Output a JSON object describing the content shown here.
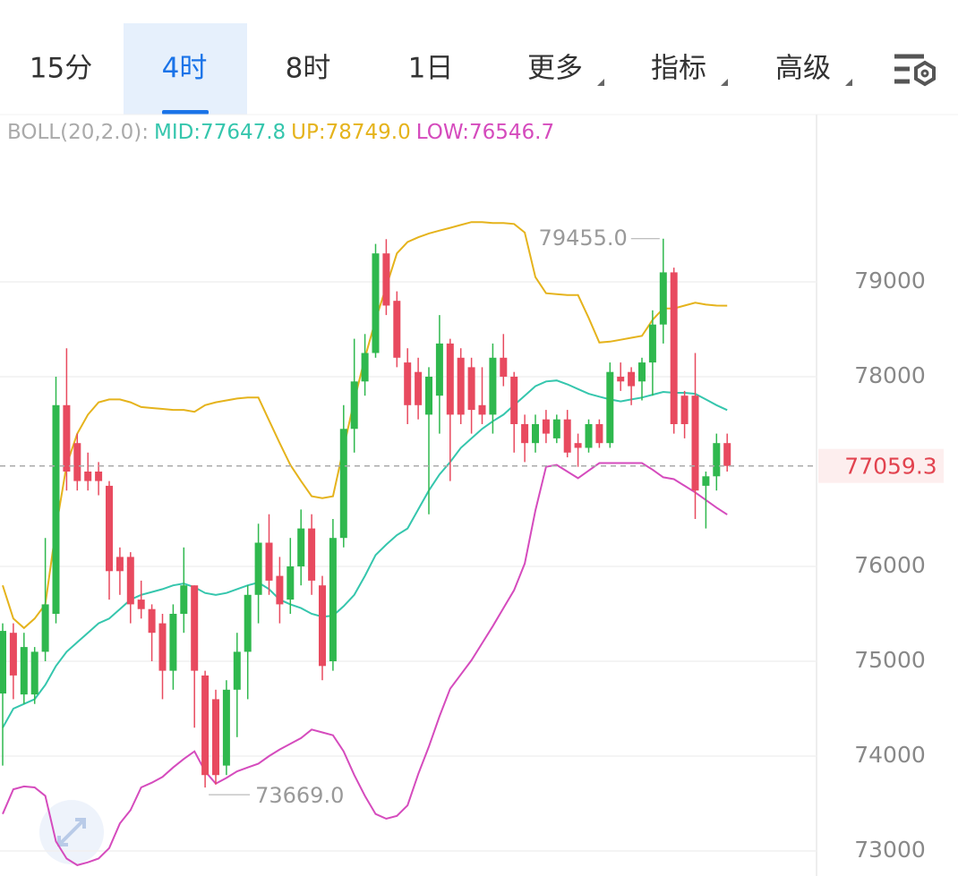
{
  "tabs": [
    "15分",
    "4时",
    "8时",
    "1日",
    "更多",
    "指标",
    "高级"
  ],
  "selected_tab": 1,
  "chart_data": {
    "type": "candlestick",
    "indicator": "BOLL(20,2.0):",
    "up_color": "#2fb84e",
    "down_color": "#e84a5f",
    "ylim": [
      72736,
      80764
    ],
    "yticks": [
      73000,
      74000,
      75000,
      76000,
      78000,
      79000
    ],
    "grid": true,
    "open": [
      74660,
      75300,
      74650,
      74650,
      75100,
      75500,
      77700,
      77300,
      77000,
      77000,
      76850,
      76100,
      76100,
      75650,
      75550,
      75400,
      74900,
      75500,
      75800,
      74850,
      74600,
      73900,
      74700,
      75100,
      75700,
      76250,
      75900,
      75650,
      76000,
      76400,
      75800,
      75000,
      76300,
      77450,
      77950,
      78250,
      79300,
      78800,
      78150,
      78050,
      77600,
      77800,
      78350,
      78200,
      78100,
      77700,
      77600,
      78200,
      78000,
      77500,
      77300,
      77550,
      77350,
      77550,
      77300,
      77250,
      77500,
      77300,
      78000,
      78050,
      77950,
      78150,
      78550,
      79100,
      77800,
      77800,
      76850,
      76950,
      77300
    ],
    "high": [
      75400,
      75400,
      75300,
      75150,
      76300,
      78000,
      78300,
      77400,
      77200,
      77100,
      76900,
      76200,
      76150,
      75850,
      75600,
      75500,
      75600,
      76200,
      75800,
      74900,
      74700,
      74800,
      75300,
      75800,
      76450,
      76550,
      76100,
      76300,
      76600,
      76550,
      75900,
      76500,
      77700,
      78400,
      78450,
      79400,
      79450,
      78900,
      78300,
      78200,
      78100,
      78650,
      78400,
      78300,
      78200,
      78100,
      78350,
      78450,
      78050,
      77600,
      77600,
      77650,
      77600,
      77650,
      77400,
      77550,
      77550,
      78150,
      78150,
      78100,
      78200,
      78700,
      79455,
      79150,
      77850,
      78250,
      77000,
      77400,
      77400
    ],
    "low": [
      73900,
      74600,
      74550,
      74550,
      75000,
      75400,
      76800,
      76800,
      76800,
      76750,
      75650,
      75700,
      75400,
      75450,
      75000,
      74600,
      74700,
      75300,
      74300,
      73669,
      73700,
      73800,
      74200,
      74600,
      75400,
      75700,
      75400,
      75500,
      75800,
      75700,
      74800,
      74900,
      76200,
      77200,
      77800,
      78200,
      78650,
      78100,
      77500,
      77550,
      76550,
      77400,
      76900,
      77500,
      77400,
      77500,
      77400,
      77900,
      77200,
      77100,
      77200,
      77300,
      77300,
      77150,
      77050,
      77200,
      77250,
      77250,
      77850,
      77700,
      77750,
      77800,
      78350,
      77400,
      77350,
      76500,
      76400,
      76800,
      77000
    ],
    "close": [
      75320,
      74850,
      75150,
      75100,
      75600,
      77700,
      77000,
      76900,
      76900,
      76900,
      75950,
      75950,
      75600,
      75550,
      75300,
      74900,
      75500,
      75800,
      74900,
      73800,
      73800,
      74700,
      75100,
      75700,
      76250,
      75850,
      75600,
      76000,
      76400,
      75850,
      74950,
      76300,
      77450,
      77950,
      78250,
      79300,
      78750,
      78200,
      77700,
      77700,
      78000,
      78350,
      77600,
      77600,
      77650,
      77600,
      78200,
      78000,
      77500,
      77300,
      77500,
      77400,
      77550,
      77200,
      77250,
      77500,
      77300,
      78050,
      77950,
      77900,
      78150,
      78550,
      79100,
      77500,
      77500,
      76800,
      76950,
      77300,
      77059.3
    ],
    "bands": [
      {
        "legend": "MID:77647.8",
        "color": "#35c6ad",
        "values": [
          74300,
          74500,
          74550,
          74600,
          74750,
          74950,
          75100,
          75200,
          75300,
          75400,
          75450,
          75550,
          75650,
          75700,
          75730,
          75760,
          75800,
          75820,
          75780,
          75720,
          75700,
          75720,
          75760,
          75800,
          75830,
          75760,
          75650,
          75600,
          75560,
          75500,
          75470,
          75480,
          75580,
          75700,
          75900,
          76120,
          76230,
          76330,
          76400,
          76600,
          76800,
          76970,
          77100,
          77250,
          77350,
          77450,
          77530,
          77600,
          77700,
          77800,
          77900,
          77950,
          77960,
          77920,
          77870,
          77820,
          77790,
          77760,
          77740,
          77760,
          77780,
          77810,
          77840,
          77830,
          77830,
          77820,
          77760,
          77700,
          77647.8
        ]
      },
      {
        "legend": "UP:78749.0",
        "color": "#e5b31c",
        "values": [
          75800,
          75450,
          75350,
          75450,
          75600,
          76400,
          77070,
          77400,
          77600,
          77730,
          77760,
          77760,
          77730,
          77680,
          77670,
          77660,
          77650,
          77650,
          77630,
          77700,
          77730,
          77750,
          77770,
          77780,
          77780,
          77540,
          77300,
          77070,
          76900,
          76740,
          76720,
          76740,
          77250,
          77750,
          78200,
          78600,
          78950,
          79300,
          79420,
          79470,
          79510,
          79540,
          79570,
          79600,
          79630,
          79630,
          79620,
          79620,
          79610,
          79520,
          79050,
          78880,
          78870,
          78860,
          78860,
          78620,
          78360,
          78370,
          78390,
          78410,
          78430,
          78600,
          78720,
          78720,
          78750,
          78780,
          78760,
          78750,
          78749
        ]
      },
      {
        "legend": "LOW:76546.7",
        "color": "#d54bbd",
        "values": [
          73390,
          73650,
          73680,
          73670,
          73580,
          73100,
          72920,
          72850,
          72880,
          72920,
          73030,
          73290,
          73430,
          73670,
          73720,
          73780,
          73880,
          73970,
          74050,
          73840,
          73710,
          73770,
          73840,
          73880,
          73920,
          74000,
          74070,
          74130,
          74190,
          74280,
          74250,
          74220,
          74050,
          73800,
          73580,
          73390,
          73340,
          73370,
          73480,
          73810,
          74100,
          74420,
          74710,
          74860,
          75010,
          75190,
          75370,
          75560,
          75750,
          76030,
          76590,
          77050,
          77070,
          77000,
          76930,
          77010,
          77090,
          77090,
          77090,
          77090,
          77090,
          77020,
          76940,
          76920,
          76850,
          76780,
          76700,
          76620,
          76546.7
        ]
      }
    ],
    "max_label": "79455.0",
    "min_label": "73669.0",
    "last_price": 77059.3,
    "last_price_label": "77059.3"
  }
}
